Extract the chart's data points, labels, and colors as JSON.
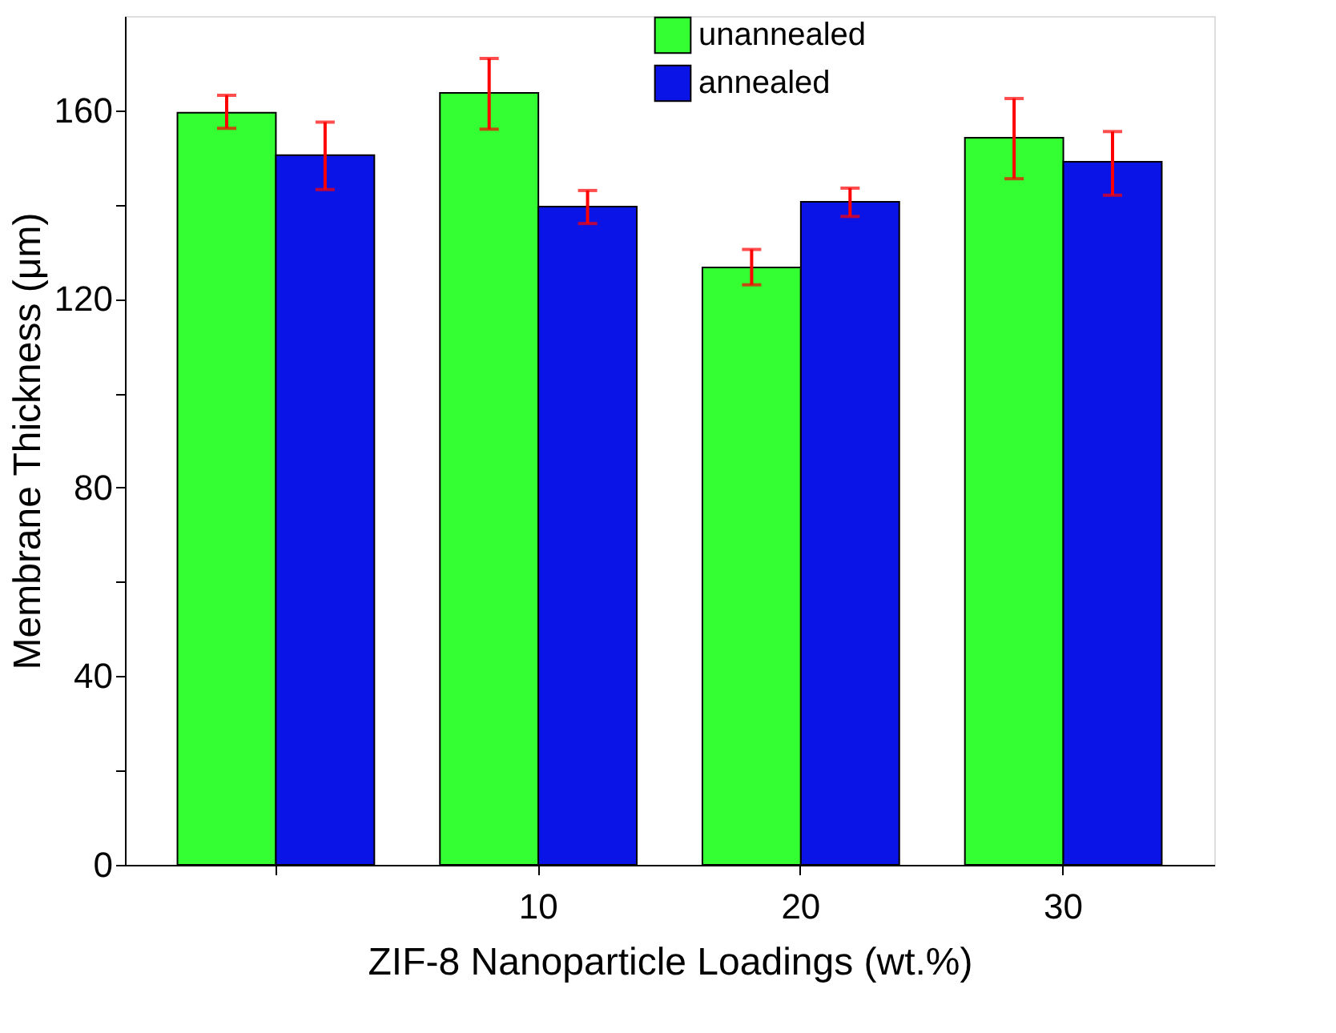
{
  "chart_data": {
    "type": "bar",
    "xlabel": "ZIF-8 Nanoparticle Loadings (wt.%)",
    "ylabel": "Membrane Thickness (μm)",
    "categories": [
      null,
      "10",
      "20",
      "30"
    ],
    "series": [
      {
        "name": "unannealed",
        "color": "#33ff33",
        "values": [
          159.5,
          163.7,
          126.7,
          154.2
        ],
        "errors": [
          [
            156.2,
            163.2
          ],
          [
            156,
            171
          ],
          [
            123,
            130.5
          ],
          [
            145.5,
            162.5
          ]
        ]
      },
      {
        "name": "annealed",
        "color": "#0a14e6",
        "values": [
          150.5,
          139.6,
          140.6,
          149.1
        ],
        "errors": [
          [
            143.2,
            157.5
          ],
          [
            136,
            143
          ],
          [
            137.5,
            143.5
          ],
          [
            142,
            155.5
          ]
        ]
      }
    ],
    "ylim": [
      0,
      180
    ],
    "yticks": [
      0,
      {
        "value": 20,
        "label": null
      },
      40,
      {
        "value": 60,
        "label": null
      },
      80,
      {
        "value": 100,
        "label": null
      },
      120,
      {
        "value": 140,
        "label": null
      },
      160
    ],
    "legend": "top",
    "grid": false
  }
}
